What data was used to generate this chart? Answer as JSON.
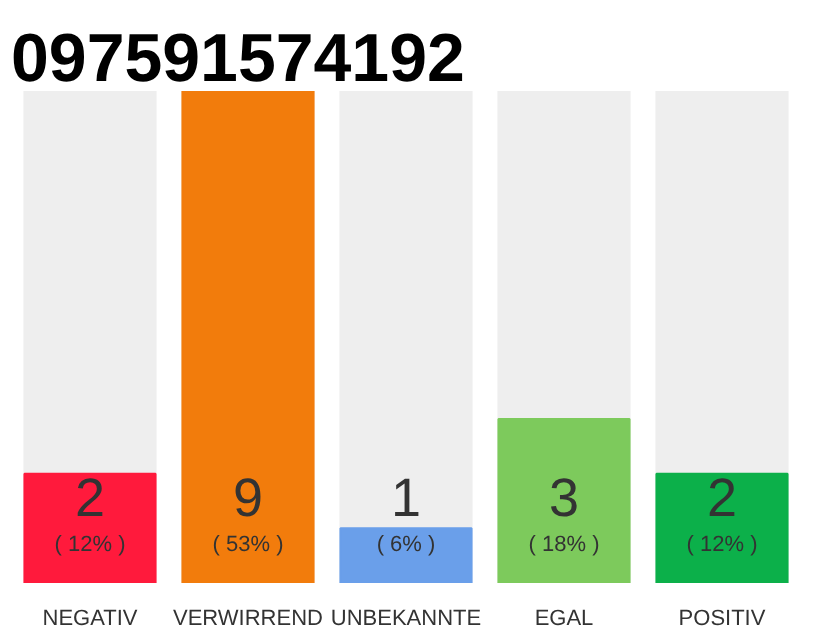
{
  "chart_data": {
    "type": "bar",
    "title": "097591574192",
    "categories": [
      "NEGATIV",
      "VERWIRREND",
      "UNBEKANNTE",
      "EGAL",
      "POSITIV"
    ],
    "values": [
      2,
      9,
      1,
      3,
      2
    ],
    "colors": [
      "#ff1a3c",
      "#f27c0c",
      "#6a9fea",
      "#7dca5c",
      "#0cb04a"
    ],
    "data_labels": true,
    "annotations": [
      "( 12% )",
      "( 53% )",
      "( 6% )",
      "( 18% )",
      "( 12% )"
    ],
    "tick_labels": "x"
  }
}
